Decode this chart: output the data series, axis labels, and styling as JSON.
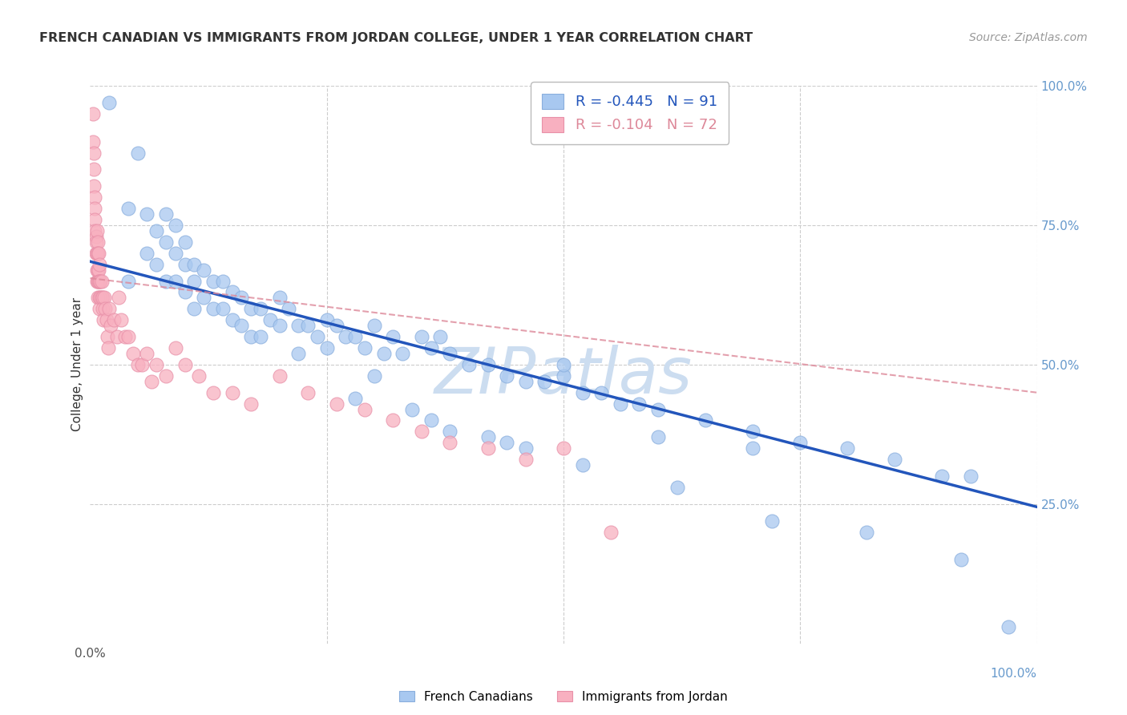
{
  "title": "FRENCH CANADIAN VS IMMIGRANTS FROM JORDAN COLLEGE, UNDER 1 YEAR CORRELATION CHART",
  "source": "Source: ZipAtlas.com",
  "ylabel": "College, Under 1 year",
  "right_yticks": [
    "100.0%",
    "75.0%",
    "50.0%",
    "25.0%"
  ],
  "right_ytick_vals": [
    1.0,
    0.75,
    0.5,
    0.25
  ],
  "watermark": "ZIPatlas",
  "legend_blue_R": "-0.445",
  "legend_blue_N": "91",
  "legend_pink_R": "-0.104",
  "legend_pink_N": "72",
  "legend_blue_label": "French Canadians",
  "legend_pink_label": "Immigrants from Jordan",
  "blue_scatter_x": [
    0.02,
    0.04,
    0.04,
    0.05,
    0.06,
    0.06,
    0.07,
    0.07,
    0.08,
    0.08,
    0.08,
    0.09,
    0.09,
    0.09,
    0.1,
    0.1,
    0.1,
    0.11,
    0.11,
    0.11,
    0.12,
    0.12,
    0.13,
    0.13,
    0.14,
    0.14,
    0.15,
    0.15,
    0.16,
    0.16,
    0.17,
    0.17,
    0.18,
    0.18,
    0.19,
    0.2,
    0.2,
    0.21,
    0.22,
    0.22,
    0.23,
    0.24,
    0.25,
    0.25,
    0.26,
    0.27,
    0.28,
    0.29,
    0.3,
    0.31,
    0.32,
    0.33,
    0.35,
    0.36,
    0.37,
    0.38,
    0.4,
    0.42,
    0.44,
    0.46,
    0.48,
    0.5,
    0.52,
    0.54,
    0.56,
    0.58,
    0.6,
    0.65,
    0.7,
    0.75,
    0.8,
    0.85,
    0.9,
    0.93,
    0.97,
    0.3,
    0.34,
    0.38,
    0.42,
    0.46,
    0.5,
    0.6,
    0.7,
    0.28,
    0.36,
    0.44,
    0.52,
    0.62,
    0.72,
    0.82,
    0.92
  ],
  "blue_scatter_y": [
    0.97,
    0.78,
    0.65,
    0.88,
    0.77,
    0.7,
    0.74,
    0.68,
    0.77,
    0.72,
    0.65,
    0.75,
    0.7,
    0.65,
    0.72,
    0.68,
    0.63,
    0.68,
    0.65,
    0.6,
    0.67,
    0.62,
    0.65,
    0.6,
    0.65,
    0.6,
    0.63,
    0.58,
    0.62,
    0.57,
    0.6,
    0.55,
    0.6,
    0.55,
    0.58,
    0.62,
    0.57,
    0.6,
    0.57,
    0.52,
    0.57,
    0.55,
    0.58,
    0.53,
    0.57,
    0.55,
    0.55,
    0.53,
    0.57,
    0.52,
    0.55,
    0.52,
    0.55,
    0.53,
    0.55,
    0.52,
    0.5,
    0.5,
    0.48,
    0.47,
    0.47,
    0.48,
    0.45,
    0.45,
    0.43,
    0.43,
    0.42,
    0.4,
    0.38,
    0.36,
    0.35,
    0.33,
    0.3,
    0.3,
    0.03,
    0.48,
    0.42,
    0.38,
    0.37,
    0.35,
    0.5,
    0.37,
    0.35,
    0.44,
    0.4,
    0.36,
    0.32,
    0.28,
    0.22,
    0.2,
    0.15
  ],
  "pink_scatter_x": [
    0.003,
    0.003,
    0.004,
    0.004,
    0.004,
    0.005,
    0.005,
    0.005,
    0.005,
    0.006,
    0.006,
    0.006,
    0.007,
    0.007,
    0.007,
    0.007,
    0.008,
    0.008,
    0.008,
    0.008,
    0.008,
    0.009,
    0.009,
    0.009,
    0.01,
    0.01,
    0.01,
    0.01,
    0.011,
    0.011,
    0.012,
    0.012,
    0.013,
    0.013,
    0.014,
    0.015,
    0.016,
    0.017,
    0.018,
    0.019,
    0.02,
    0.022,
    0.025,
    0.028,
    0.03,
    0.033,
    0.037,
    0.04,
    0.045,
    0.05,
    0.055,
    0.06,
    0.065,
    0.07,
    0.08,
    0.09,
    0.1,
    0.115,
    0.13,
    0.15,
    0.17,
    0.2,
    0.23,
    0.26,
    0.29,
    0.32,
    0.35,
    0.38,
    0.42,
    0.46,
    0.5,
    0.55
  ],
  "pink_scatter_y": [
    0.95,
    0.9,
    0.88,
    0.85,
    0.82,
    0.8,
    0.78,
    0.76,
    0.74,
    0.73,
    0.72,
    0.7,
    0.74,
    0.7,
    0.67,
    0.65,
    0.72,
    0.7,
    0.67,
    0.65,
    0.62,
    0.7,
    0.67,
    0.65,
    0.68,
    0.65,
    0.62,
    0.6,
    0.65,
    0.62,
    0.65,
    0.62,
    0.62,
    0.6,
    0.58,
    0.62,
    0.6,
    0.58,
    0.55,
    0.53,
    0.6,
    0.57,
    0.58,
    0.55,
    0.62,
    0.58,
    0.55,
    0.55,
    0.52,
    0.5,
    0.5,
    0.52,
    0.47,
    0.5,
    0.48,
    0.53,
    0.5,
    0.48,
    0.45,
    0.45,
    0.43,
    0.48,
    0.45,
    0.43,
    0.42,
    0.4,
    0.38,
    0.36,
    0.35,
    0.33,
    0.35,
    0.2
  ],
  "blue_line_x0": 0.0,
  "blue_line_x1": 1.0,
  "blue_line_y0": 0.685,
  "blue_line_y1": 0.245,
  "pink_line_x0": 0.0,
  "pink_line_x1": 1.0,
  "pink_line_y0": 0.655,
  "pink_line_y1": 0.45,
  "bg_color": "#ffffff",
  "scatter_blue_color": "#a8c8f0",
  "scatter_pink_color": "#f8b0c0",
  "scatter_blue_edge": "#89aedd",
  "scatter_pink_edge": "#e890a8",
  "line_blue_color": "#2255bb",
  "line_pink_color": "#dd8899",
  "grid_color": "#cccccc",
  "title_color": "#333333",
  "right_axis_color": "#6699cc",
  "watermark_color": "#ccddf0",
  "xlim": [
    0.0,
    1.0
  ],
  "ylim": [
    0.0,
    1.0
  ]
}
